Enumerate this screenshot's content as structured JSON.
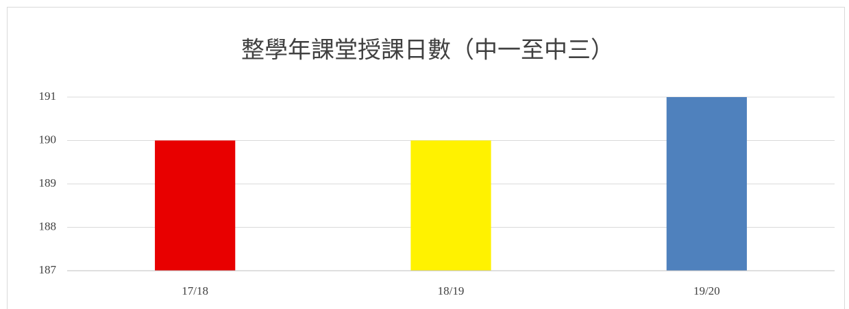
{
  "chart_data": {
    "type": "bar",
    "title": "整學年課堂授課日數（中一至中三）",
    "categories": [
      "17/18",
      "18/19",
      "19/20"
    ],
    "values": [
      190,
      190,
      191
    ],
    "colors": [
      "#e80000",
      "#fff200",
      "#4f81bd"
    ],
    "ylim": [
      187,
      191
    ],
    "yticks": [
      187,
      188,
      189,
      190,
      191
    ],
    "grid": true
  }
}
